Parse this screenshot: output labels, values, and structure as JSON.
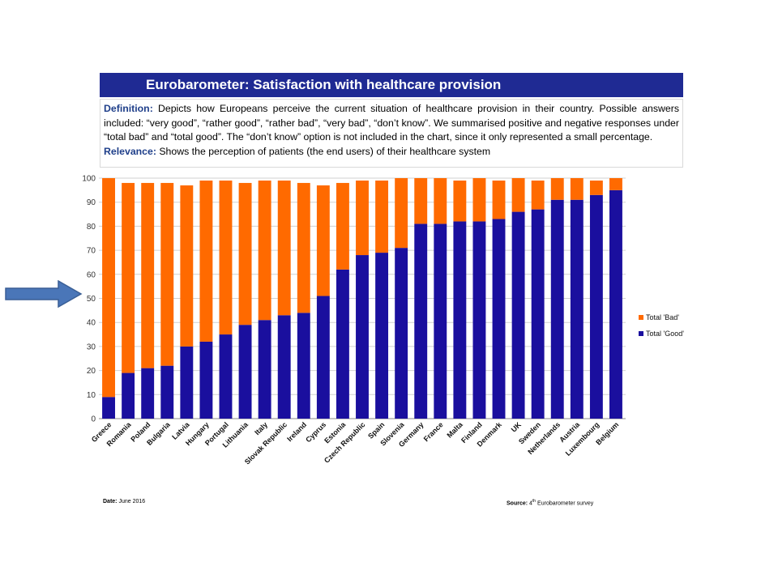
{
  "header": {
    "title": "Eurobarometer: Satisfaction with healthcare provision"
  },
  "definition": {
    "definition_label": "Definition:",
    "definition_text": "Depicts how Europeans perceive the current situation of healthcare provision in their country. Possible answers included: “very good”, “rather good”, “rather bad”, “very bad”, “don’t know”. We summarised positive and negative responses under “total bad” and “total good”. The “don’t know” option is not included in the chart, since it only represented a small percentage.",
    "relevance_label": "Relevance:",
    "relevance_text": "Shows the perception of patients (the end users) of their healthcare system"
  },
  "colors": {
    "good": "#1a0f9e",
    "bad": "#ff6a00",
    "header_bg": "#1f2a93",
    "arrow": "#4a76b8"
  },
  "chart_data": {
    "type": "bar",
    "stacked": true,
    "categories": [
      "Greece",
      "Romania",
      "Poland",
      "Bulgaria",
      "Latvia",
      "Hungary",
      "Portugal",
      "Lithuania",
      "Italy",
      "Slovak Republic",
      "Ireland",
      "Cyprus",
      "Estonia",
      "Czech Republic",
      "Spain",
      "Slovenia",
      "Germany",
      "France",
      "Malta",
      "Finland",
      "Denmark",
      "UK",
      "Sweden",
      "Netherlands",
      "Austria",
      "Luxembourg",
      "Belgium"
    ],
    "series": [
      {
        "name": "Total 'Good'",
        "color": "#1a0f9e",
        "values": [
          9,
          19,
          21,
          22,
          30,
          32,
          35,
          39,
          41,
          43,
          44,
          51,
          62,
          68,
          69,
          71,
          81,
          81,
          82,
          82,
          83,
          86,
          87,
          91,
          91,
          93,
          95
        ]
      },
      {
        "name": "Total 'Bad'",
        "color": "#ff6a00",
        "values": [
          91,
          79,
          77,
          76,
          67,
          67,
          64,
          59,
          58,
          56,
          54,
          46,
          36,
          31,
          30,
          29,
          19,
          19,
          17,
          18,
          16,
          14,
          12,
          9,
          9,
          6,
          5
        ]
      }
    ],
    "ylim": [
      0,
      100
    ],
    "yticks": [
      "0",
      "10",
      "20",
      "30",
      "40",
      "50",
      "60",
      "70",
      "80",
      "90",
      "100"
    ],
    "grid": true,
    "legend_position": "right"
  },
  "footer": {
    "date_label": "Date:",
    "date_value": "June 2016",
    "source_label": "Source:",
    "source_num": "4",
    "source_sup": "th",
    "source_rest": "Eurobarometer survey"
  }
}
